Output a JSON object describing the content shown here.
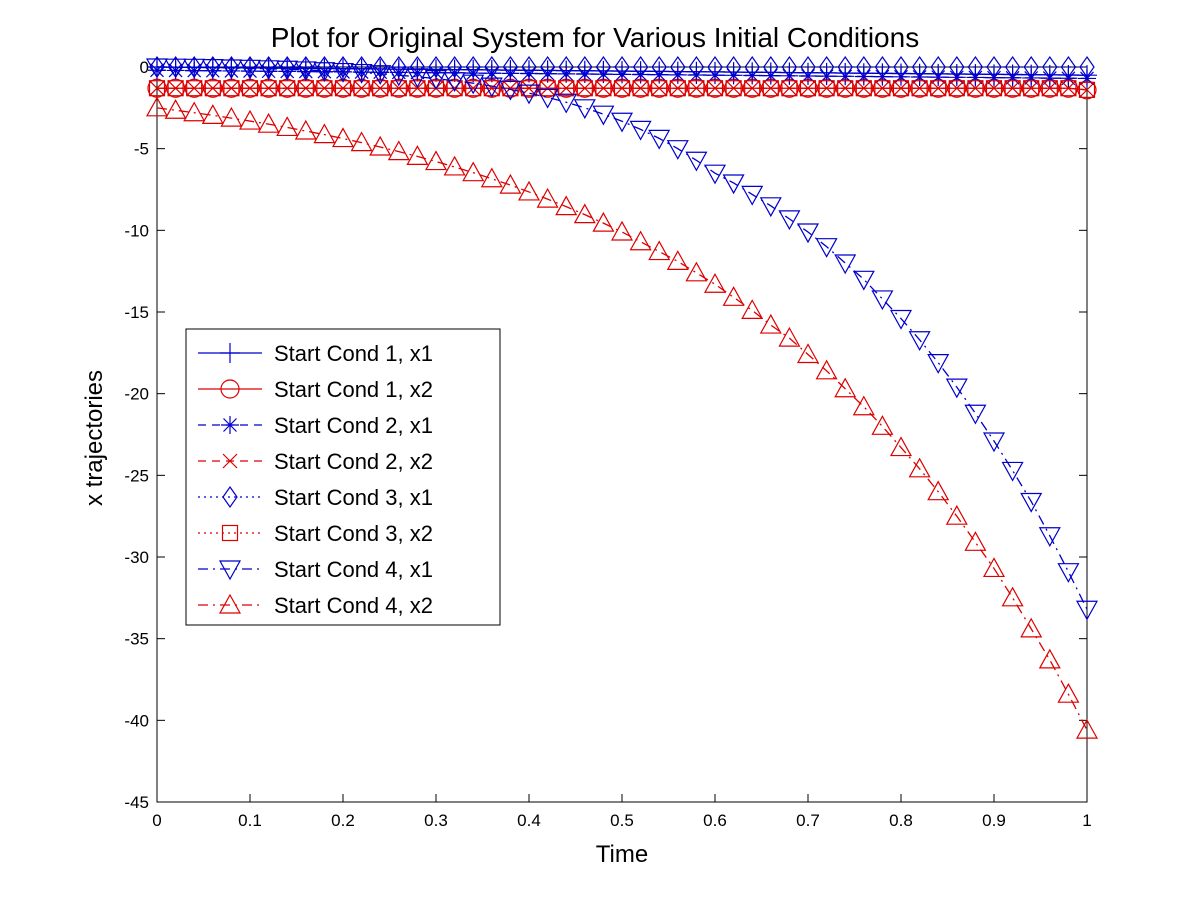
{
  "chart_data": {
    "type": "line",
    "title": "Plot for Original System for Various Initial Conditions",
    "xlabel": "Time",
    "ylabel": "x trajectories",
    "xlim": [
      0,
      1
    ],
    "ylim": [
      -45,
      0
    ],
    "xticks": [
      0,
      0.1,
      0.2,
      0.3,
      0.4,
      0.5,
      0.6,
      0.7,
      0.8,
      0.9,
      1
    ],
    "yticks": [
      0,
      -5,
      -10,
      -15,
      -20,
      -25,
      -30,
      -35,
      -40,
      -45
    ],
    "xtick_labels": [
      "0",
      "0.1",
      "0.2",
      "0.3",
      "0.4",
      "0.5",
      "0.6",
      "0.7",
      "0.8",
      "0.9",
      "1"
    ],
    "ytick_labels": [
      "0",
      "-5",
      "-10",
      "-15",
      "-20",
      "-25",
      "-30",
      "-35",
      "-40",
      "-45"
    ],
    "grid": false,
    "legend_position": "middle-left",
    "x": [
      0,
      0.02,
      0.04,
      0.06,
      0.08,
      0.1,
      0.12,
      0.14,
      0.16,
      0.18,
      0.2,
      0.22,
      0.24,
      0.26,
      0.28,
      0.3,
      0.32,
      0.34,
      0.36,
      0.38,
      0.4,
      0.42,
      0.44,
      0.46,
      0.48,
      0.5,
      0.52,
      0.54,
      0.56,
      0.58,
      0.6,
      0.62,
      0.64,
      0.66,
      0.68,
      0.7,
      0.72,
      0.74,
      0.76,
      0.78,
      0.8,
      0.82,
      0.84,
      0.86,
      0.88,
      0.9,
      0.92,
      0.94,
      0.96,
      0.98,
      1
    ],
    "series": [
      {
        "name": "Start Cond 1, x1",
        "color": "#0000cc",
        "linestyle": "solid",
        "marker": "plus",
        "values": [
          0,
          -0.01,
          -0.02,
          -0.03,
          -0.04,
          -0.05,
          -0.06,
          -0.07,
          -0.08,
          -0.09,
          -0.1,
          -0.11,
          -0.12,
          -0.13,
          -0.14,
          -0.15,
          -0.16,
          -0.17,
          -0.18,
          -0.19,
          -0.2,
          -0.21,
          -0.22,
          -0.23,
          -0.24,
          -0.25,
          -0.26,
          -0.27,
          -0.28,
          -0.29,
          -0.3,
          -0.31,
          -0.32,
          -0.33,
          -0.34,
          -0.35,
          -0.36,
          -0.37,
          -0.38,
          -0.39,
          -0.4,
          -0.41,
          -0.42,
          -0.43,
          -0.44,
          -0.45,
          -0.46,
          -0.47,
          -0.48,
          -0.49,
          -0.5
        ]
      },
      {
        "name": "Start Cond 1, x2",
        "color": "#dd0000",
        "linestyle": "solid",
        "marker": "circle",
        "values": [
          -1.3,
          -1.3,
          -1.3,
          -1.3,
          -1.3,
          -1.3,
          -1.3,
          -1.3,
          -1.3,
          -1.3,
          -1.3,
          -1.3,
          -1.3,
          -1.3,
          -1.3,
          -1.3,
          -1.3,
          -1.3,
          -1.3,
          -1.3,
          -1.3,
          -1.3,
          -1.3,
          -1.3,
          -1.3,
          -1.3,
          -1.3,
          -1.3,
          -1.3,
          -1.3,
          -1.3,
          -1.3,
          -1.3,
          -1.3,
          -1.3,
          -1.3,
          -1.3,
          -1.3,
          -1.3,
          -1.3,
          -1.3,
          -1.3,
          -1.3,
          -1.3,
          -1.3,
          -1.3,
          -1.3,
          -1.3,
          -1.3,
          -1.3,
          -1.4
        ]
      },
      {
        "name": "Start Cond 2, x1",
        "color": "#0000cc",
        "linestyle": "dashed",
        "marker": "asterisk",
        "values": [
          -0.2,
          -0.21,
          -0.22,
          -0.23,
          -0.24,
          -0.25,
          -0.26,
          -0.27,
          -0.28,
          -0.29,
          -0.3,
          -0.31,
          -0.32,
          -0.33,
          -0.34,
          -0.35,
          -0.36,
          -0.37,
          -0.38,
          -0.39,
          -0.4,
          -0.41,
          -0.42,
          -0.43,
          -0.44,
          -0.45,
          -0.46,
          -0.47,
          -0.48,
          -0.49,
          -0.5,
          -0.51,
          -0.52,
          -0.53,
          -0.54,
          -0.55,
          -0.56,
          -0.57,
          -0.58,
          -0.59,
          -0.6,
          -0.61,
          -0.62,
          -0.63,
          -0.64,
          -0.65,
          -0.66,
          -0.67,
          -0.68,
          -0.69,
          -0.7
        ]
      },
      {
        "name": "Start Cond 2, x2",
        "color": "#dd0000",
        "linestyle": "dashed",
        "marker": "x",
        "values": [
          -1.3,
          -1.3,
          -1.3,
          -1.3,
          -1.3,
          -1.3,
          -1.3,
          -1.3,
          -1.3,
          -1.3,
          -1.3,
          -1.3,
          -1.3,
          -1.3,
          -1.3,
          -1.3,
          -1.3,
          -1.3,
          -1.3,
          -1.3,
          -1.3,
          -1.3,
          -1.3,
          -1.3,
          -1.3,
          -1.3,
          -1.3,
          -1.3,
          -1.3,
          -1.3,
          -1.3,
          -1.3,
          -1.3,
          -1.3,
          -1.3,
          -1.3,
          -1.3,
          -1.3,
          -1.3,
          -1.3,
          -1.3,
          -1.3,
          -1.3,
          -1.3,
          -1.3,
          -1.3,
          -1.3,
          -1.3,
          -1.3,
          -1.3,
          -1.4
        ]
      },
      {
        "name": "Start Cond 3, x1",
        "color": "#0000cc",
        "linestyle": "dotted",
        "marker": "diamond",
        "values": [
          0,
          0,
          0,
          0,
          0,
          0,
          0,
          0,
          0,
          0,
          0,
          0,
          0,
          0,
          0,
          0,
          0,
          0,
          0,
          0,
          0,
          0,
          0,
          0,
          0,
          0,
          0,
          0,
          0,
          0,
          0,
          0,
          0,
          0,
          0,
          0,
          0,
          0,
          0,
          0,
          0,
          0,
          0,
          0,
          0,
          0,
          0,
          0,
          0,
          0,
          0
        ]
      },
      {
        "name": "Start Cond 3, x2",
        "color": "#dd0000",
        "linestyle": "dotted",
        "marker": "square",
        "values": [
          -1.3,
          -1.3,
          -1.3,
          -1.3,
          -1.3,
          -1.3,
          -1.3,
          -1.3,
          -1.3,
          -1.3,
          -1.3,
          -1.3,
          -1.3,
          -1.3,
          -1.3,
          -1.3,
          -1.3,
          -1.3,
          -1.3,
          -1.3,
          -1.3,
          -1.3,
          -1.3,
          -1.3,
          -1.3,
          -1.3,
          -1.3,
          -1.3,
          -1.3,
          -1.3,
          -1.3,
          -1.3,
          -1.3,
          -1.3,
          -1.3,
          -1.3,
          -1.3,
          -1.3,
          -1.3,
          -1.3,
          -1.3,
          -1.3,
          -1.3,
          -1.3,
          -1.3,
          -1.3,
          -1.3,
          -1.3,
          -1.3,
          -1.3,
          -1.4
        ]
      },
      {
        "name": "Start Cond 4, x1",
        "color": "#0000cc",
        "linestyle": "dashdot",
        "marker": "triangle-down",
        "values": [
          0.0,
          -0.01,
          -0.02,
          -0.04,
          -0.06,
          -0.08,
          -0.11,
          -0.14,
          -0.18,
          -0.23,
          -0.28,
          -0.34,
          -0.41,
          -0.5,
          -0.6,
          -0.71,
          -0.84,
          -0.99,
          -1.17,
          -1.37,
          -1.6,
          -1.86,
          -2.16,
          -2.5,
          -2.89,
          -3.32,
          -3.82,
          -4.37,
          -5.0,
          -5.71,
          -6.5,
          -7.1,
          -7.8,
          -8.5,
          -9.3,
          -10.1,
          -11.0,
          -12.0,
          -13.0,
          -14.2,
          -15.4,
          -16.7,
          -18.1,
          -19.6,
          -21.2,
          -22.9,
          -24.7,
          -26.6,
          -28.7,
          -30.9,
          -33.2
        ]
      },
      {
        "name": "Start Cond 4, x2",
        "color": "#dd0000",
        "linestyle": "dashdot",
        "marker": "triangle-up",
        "values": [
          -2.5,
          -2.65,
          -2.8,
          -2.96,
          -3.13,
          -3.31,
          -3.5,
          -3.7,
          -3.92,
          -4.14,
          -4.38,
          -4.63,
          -4.9,
          -5.18,
          -5.47,
          -5.79,
          -6.12,
          -6.47,
          -6.84,
          -7.23,
          -7.65,
          -8.09,
          -8.55,
          -9.04,
          -9.56,
          -10.1,
          -10.7,
          -11.3,
          -11.9,
          -12.6,
          -13.3,
          -14.1,
          -14.9,
          -15.8,
          -16.6,
          -17.6,
          -18.6,
          -19.7,
          -20.8,
          -22.0,
          -23.3,
          -24.6,
          -26.0,
          -27.5,
          -29.1,
          -30.7,
          -32.5,
          -34.4,
          -36.3,
          -38.4,
          -40.6
        ]
      }
    ]
  }
}
